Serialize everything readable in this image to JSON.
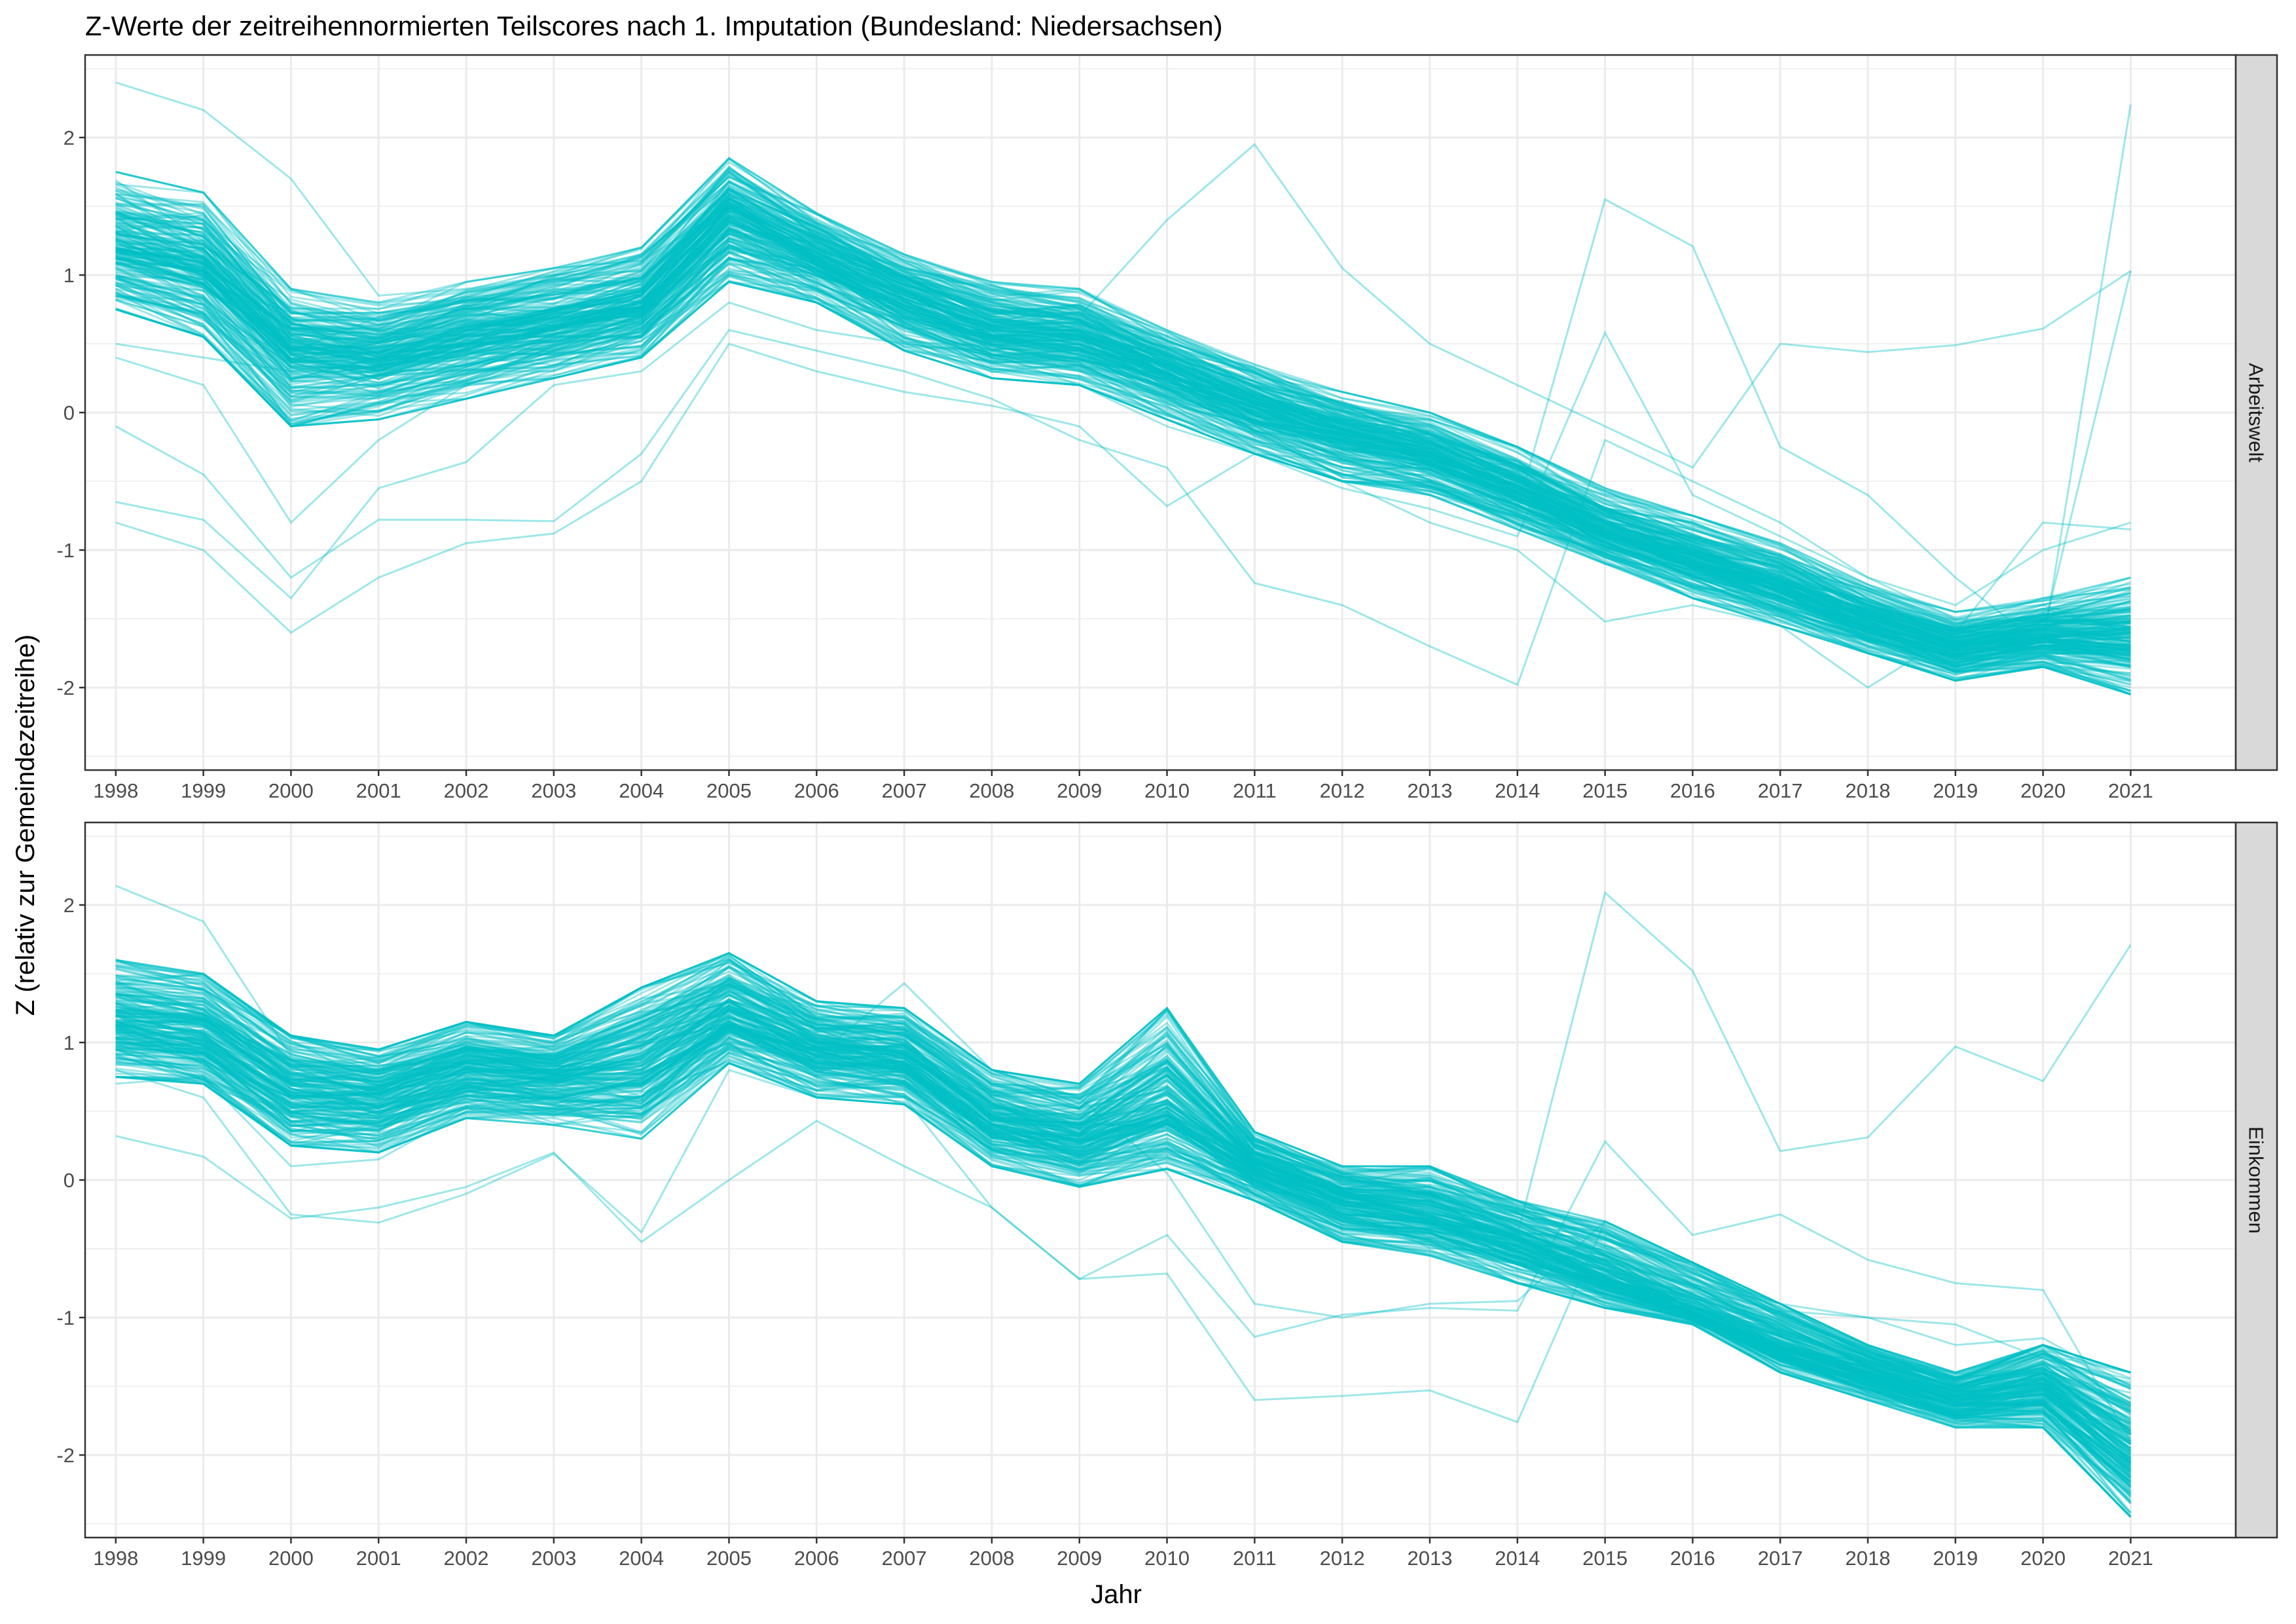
{
  "chart_data": {
    "type": "line",
    "title": "Z-Werte der zeitreihennormierten Teilscores nach 1. Imputation (Bundesland: Niedersachsen)",
    "xlabel": "Jahr",
    "ylabel": "Z (relativ zur Gemeindezeitreihe)",
    "x": [
      1998,
      1999,
      2000,
      2001,
      2002,
      2003,
      2004,
      2005,
      2006,
      2007,
      2008,
      2009,
      2010,
      2011,
      2012,
      2013,
      2014,
      2015,
      2016,
      2017,
      2018,
      2019,
      2020,
      2021
    ],
    "x_tick_labels": [
      "1998",
      "1999",
      "2000",
      "2001",
      "2002",
      "2003",
      "2004",
      "2005",
      "2006",
      "2007",
      "2008",
      "2009",
      "2010",
      "2011",
      "2012",
      "2013",
      "2014",
      "2015",
      "2016",
      "2017",
      "2018",
      "2019",
      "2020",
      "2021"
    ],
    "y_tick_labels": [
      "2",
      "1",
      "0",
      "-1",
      "-2"
    ],
    "y_ticks": [
      2,
      1,
      0,
      -1,
      -2
    ],
    "ylim": [
      -2.6,
      2.6
    ],
    "xlim": [
      1997.65,
      2022.2
    ],
    "grid": true,
    "series_color": "#00BFC4",
    "background": "#ffffff",
    "grid_color": "#ebebeb",
    "strip_fill": "#d9d9d9",
    "line_alpha": 0.38,
    "n_lines_per_panel": 220,
    "note_series": "Each panel shows one line per municipality (many overlapping, semi-transparent cyan lines). Values below are the central band (median, lower and upper envelope) read from the chart plus selected outlier trajectories.",
    "facets": [
      {
        "strip_label": "Arbeitswelt",
        "band": {
          "median": [
            1.2,
            1.05,
            0.45,
            0.4,
            0.55,
            0.65,
            0.8,
            1.45,
            1.15,
            0.85,
            0.6,
            0.55,
            0.3,
            0.05,
            -0.15,
            -0.3,
            -0.55,
            -0.85,
            -1.05,
            -1.25,
            -1.5,
            -1.7,
            -1.62,
            -1.62
          ],
          "lower": [
            0.75,
            0.55,
            -0.1,
            -0.05,
            0.1,
            0.25,
            0.4,
            0.95,
            0.8,
            0.45,
            0.25,
            0.2,
            -0.05,
            -0.3,
            -0.5,
            -0.6,
            -0.85,
            -1.1,
            -1.35,
            -1.55,
            -1.75,
            -1.95,
            -1.85,
            -2.05
          ],
          "upper": [
            1.75,
            1.6,
            0.9,
            0.8,
            0.95,
            1.05,
            1.2,
            1.85,
            1.45,
            1.15,
            0.95,
            0.9,
            0.6,
            0.35,
            0.15,
            0.0,
            -0.25,
            -0.55,
            -0.75,
            -0.95,
            -1.25,
            -1.45,
            -1.35,
            -1.2
          ]
        },
        "outliers": [
          [
            2.4,
            2.2,
            1.7,
            0.85,
            0.9,
            1.0,
            1.1,
            1.5,
            1.2,
            0.9,
            0.7,
            0.6,
            0.4,
            0.1,
            -0.1,
            -0.3,
            -0.6,
            -0.9,
            -1.1,
            -1.3,
            -1.5,
            -1.7,
            -1.6,
            1.03
          ],
          [
            0.5,
            0.4,
            0.3,
            0.35,
            0.5,
            0.65,
            0.8,
            1.2,
            1.0,
            0.8,
            0.6,
            0.7,
            1.4,
            1.95,
            1.05,
            0.5,
            0.2,
            -0.1,
            -0.4,
            0.5,
            0.44,
            0.49,
            0.61,
            1.03
          ],
          [
            0.4,
            0.2,
            -0.8,
            -0.2,
            0.2,
            0.4,
            0.6,
            1.0,
            0.9,
            0.6,
            0.4,
            0.3,
            0.0,
            -0.2,
            -0.4,
            -0.5,
            -0.7,
            1.55,
            1.21,
            -0.25,
            -0.6,
            -1.2,
            -1.7,
            2.24
          ],
          [
            -0.1,
            -0.45,
            -1.2,
            -0.78,
            -0.78,
            -0.79,
            -0.3,
            0.6,
            0.45,
            0.3,
            0.1,
            -0.2,
            -0.4,
            -1.24,
            -1.4,
            -1.7,
            -1.98,
            -0.2,
            -0.5,
            -0.8,
            -1.2,
            -1.5,
            -1.4,
            -1.6
          ],
          [
            -0.8,
            -1.0,
            -1.6,
            -1.2,
            -0.95,
            -0.88,
            -0.5,
            0.5,
            0.3,
            0.15,
            0.05,
            -0.1,
            -0.68,
            -0.3,
            -0.5,
            -0.8,
            -1.0,
            -1.52,
            -1.4,
            -1.55,
            -2.0,
            -1.6,
            -0.8,
            -0.85
          ],
          [
            -0.65,
            -0.78,
            -1.35,
            -0.55,
            -0.36,
            0.2,
            0.3,
            0.8,
            0.6,
            0.5,
            0.3,
            0.2,
            -0.1,
            -0.3,
            -0.55,
            -0.7,
            -0.9,
            0.58,
            -0.6,
            -0.9,
            -1.2,
            -1.4,
            -1.0,
            -0.8
          ]
        ]
      },
      {
        "strip_label": "Einkommen",
        "band": {
          "median": [
            1.15,
            1.05,
            0.65,
            0.6,
            0.8,
            0.75,
            0.85,
            1.2,
            0.95,
            0.9,
            0.45,
            0.3,
            0.55,
            0.1,
            -0.15,
            -0.25,
            -0.45,
            -0.7,
            -0.95,
            -1.2,
            -1.4,
            -1.6,
            -1.5,
            -2.0
          ],
          "lower": [
            0.75,
            0.7,
            0.25,
            0.2,
            0.45,
            0.4,
            0.3,
            0.85,
            0.6,
            0.55,
            0.1,
            -0.05,
            0.08,
            -0.15,
            -0.45,
            -0.55,
            -0.75,
            -0.93,
            -1.05,
            -1.4,
            -1.6,
            -1.8,
            -1.8,
            -2.45
          ],
          "upper": [
            1.6,
            1.5,
            1.05,
            0.95,
            1.15,
            1.05,
            1.4,
            1.65,
            1.3,
            1.25,
            0.8,
            0.7,
            1.25,
            0.35,
            0.1,
            0.1,
            -0.15,
            -0.3,
            -0.6,
            -0.9,
            -1.2,
            -1.4,
            -1.2,
            -1.4
          ]
        },
        "outliers": [
          [
            2.14,
            1.88,
            0.9,
            0.8,
            0.95,
            0.9,
            1.0,
            1.3,
            1.0,
            0.9,
            0.5,
            0.4,
            0.4,
            0.2,
            0.0,
            -0.1,
            -0.4,
            2.09,
            1.52,
            0.21,
            0.31,
            0.97,
            0.72,
            1.71
          ],
          [
            0.32,
            0.17,
            -0.28,
            -0.2,
            -0.05,
            0.2,
            -0.45,
            0.0,
            0.43,
            0.1,
            -0.2,
            -0.72,
            -0.4,
            -1.14,
            -0.98,
            -0.93,
            -0.95,
            0.28,
            -0.4,
            -0.25,
            -0.58,
            -0.75,
            -0.8,
            -1.9
          ],
          [
            0.8,
            0.6,
            -0.25,
            -0.31,
            -0.1,
            0.19,
            -0.38,
            0.8,
            0.6,
            0.6,
            -0.2,
            -0.72,
            -0.68,
            -1.6,
            -1.57,
            -1.53,
            -1.76,
            -0.3,
            -0.6,
            -0.9,
            -1.0,
            -1.2,
            -1.15,
            -1.5
          ],
          [
            0.7,
            0.75,
            0.1,
            0.15,
            0.5,
            0.6,
            0.7,
            1.0,
            0.9,
            1.43,
            0.8,
            0.6,
            0.05,
            -0.9,
            -1.0,
            -0.9,
            -0.88,
            -0.3,
            -0.6,
            -0.95,
            -1.0,
            -1.05,
            -1.3,
            -1.45
          ]
        ]
      }
    ]
  }
}
